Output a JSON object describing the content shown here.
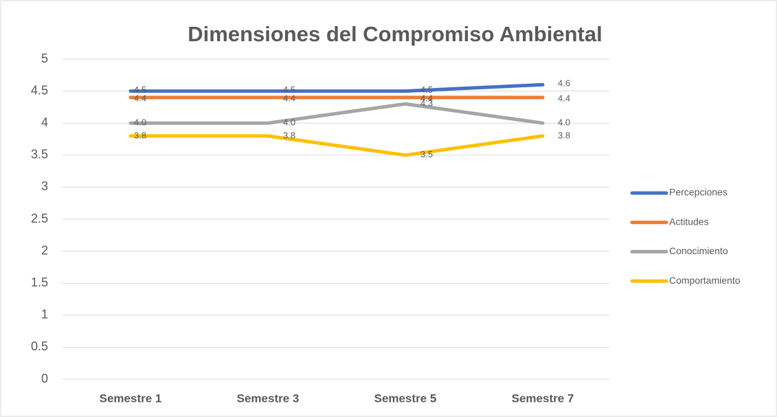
{
  "chart_data": {
    "type": "line",
    "title": "Dimensiones del Compromiso Ambiental",
    "categories": [
      "Semestre 1",
      "Semestre 3",
      "Semestre 5",
      "Semestre 7"
    ],
    "series": [
      {
        "name": "Percepciones",
        "color": "#4472c4",
        "values": [
          4.5,
          4.5,
          4.5,
          4.6
        ],
        "value_labels": [
          "4.5",
          "4.5",
          "4.5",
          "4.6"
        ]
      },
      {
        "name": "Actitudes",
        "color": "#ed7d31",
        "values": [
          4.4,
          4.4,
          4.4,
          4.4
        ],
        "value_labels": [
          "4.4",
          "4.4",
          "4.4",
          "4.4"
        ]
      },
      {
        "name": "Conocimiento",
        "color": "#a5a5a5",
        "values": [
          4,
          4,
          4.3,
          4
        ],
        "value_labels": [
          "4.0",
          "4.0",
          "4.3",
          "4.0"
        ]
      },
      {
        "name": "Comportamiento",
        "color": "#ffc000",
        "values": [
          3.8,
          3.8,
          3.5,
          3.8
        ],
        "value_labels": [
          "3.8",
          "3.8",
          "3.5",
          "3.8"
        ]
      }
    ],
    "ylim": [
      0,
      5
    ],
    "yticks": [
      0,
      0.5,
      1,
      1.5,
      2,
      2.5,
      3,
      3.5,
      4,
      4.5,
      5
    ],
    "grid": true,
    "legend": "right"
  }
}
